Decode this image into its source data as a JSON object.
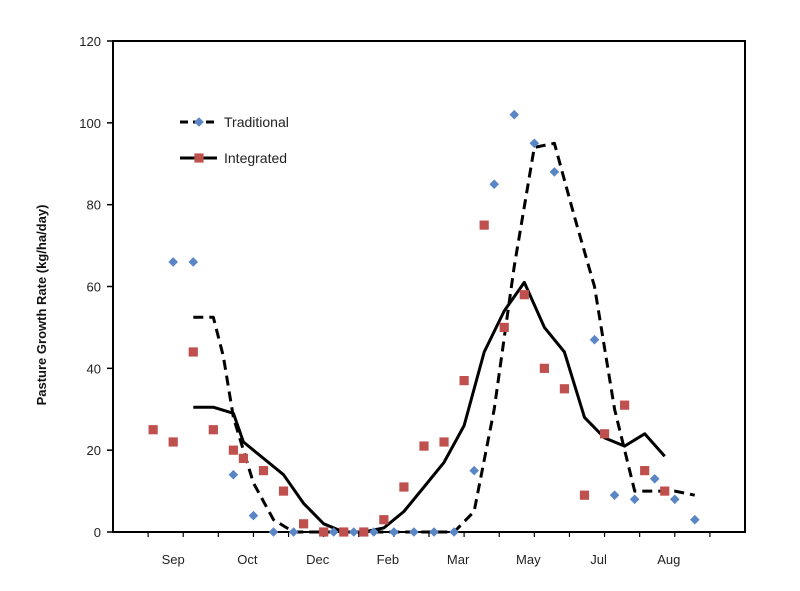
{
  "chart_data": {
    "type": "scatter",
    "ylabel": "Pasture Growth Rate (kg/ha/day)",
    "xlabel": "",
    "ylim": [
      0,
      120
    ],
    "yticks": [
      0,
      20,
      40,
      60,
      80,
      100,
      120
    ],
    "x_tick_labels": [
      {
        "label": "Sep",
        "x": 1.0
      },
      {
        "label": "Oct",
        "x": 4.7
      },
      {
        "label": "Dec",
        "x": 8.2
      },
      {
        "label": "Feb",
        "x": 11.7
      },
      {
        "label": "Mar",
        "x": 15.2
      },
      {
        "label": "May",
        "x": 18.7
      },
      {
        "label": "Jul",
        "x": 22.2
      },
      {
        "label": "Aug",
        "x": 25.7
      }
    ],
    "xlim": [
      -2,
      29.5
    ],
    "grid": false,
    "legend_position": "top-left",
    "series": [
      {
        "name": "Traditional",
        "color": "#5b86c5",
        "marker": "diamond",
        "line_style": "dashed",
        "points": [
          [
            1,
            66
          ],
          [
            2,
            66
          ],
          [
            4,
            14
          ],
          [
            5,
            4
          ],
          [
            6,
            0
          ],
          [
            7,
            0
          ],
          [
            9,
            0
          ],
          [
            10,
            0
          ],
          [
            11,
            0
          ],
          [
            12,
            0
          ],
          [
            13,
            0
          ],
          [
            14,
            0
          ],
          [
            15,
            0
          ],
          [
            16,
            15
          ],
          [
            17,
            85
          ],
          [
            18,
            102
          ],
          [
            19,
            95
          ],
          [
            20,
            88
          ],
          [
            22,
            47
          ],
          [
            23,
            9
          ],
          [
            24,
            8
          ],
          [
            25,
            13
          ],
          [
            26,
            8
          ],
          [
            27,
            3
          ]
        ],
        "line": [
          [
            2,
            52.5
          ],
          [
            3,
            52.5
          ],
          [
            3.5,
            43
          ],
          [
            4,
            28
          ],
          [
            5,
            12
          ],
          [
            6,
            3
          ],
          [
            7,
            0
          ],
          [
            8,
            0
          ],
          [
            9,
            0
          ],
          [
            10,
            0
          ],
          [
            11,
            0
          ],
          [
            12,
            0
          ],
          [
            13,
            0
          ],
          [
            14,
            0
          ],
          [
            15,
            0
          ],
          [
            16,
            5
          ],
          [
            17,
            30
          ],
          [
            18,
            65
          ],
          [
            19,
            94
          ],
          [
            20,
            95
          ],
          [
            21,
            77
          ],
          [
            22,
            60
          ],
          [
            23,
            30
          ],
          [
            24,
            10
          ],
          [
            25,
            10
          ],
          [
            26,
            10
          ],
          [
            27,
            9
          ]
        ]
      },
      {
        "name": "Integrated",
        "color": "#c0504d",
        "marker": "square",
        "line_style": "solid",
        "points": [
          [
            0,
            25
          ],
          [
            1,
            22
          ],
          [
            2,
            44
          ],
          [
            3,
            25
          ],
          [
            4,
            20
          ],
          [
            4.5,
            18
          ],
          [
            5.5,
            15
          ],
          [
            6.5,
            10
          ],
          [
            7.5,
            2
          ],
          [
            8.5,
            0
          ],
          [
            9.5,
            0
          ],
          [
            10.5,
            0
          ],
          [
            11.5,
            3
          ],
          [
            12.5,
            11
          ],
          [
            13.5,
            21
          ],
          [
            14.5,
            22
          ],
          [
            15.5,
            37
          ],
          [
            16.5,
            75
          ],
          [
            17.5,
            50
          ],
          [
            18.5,
            58
          ],
          [
            19.5,
            40
          ],
          [
            20.5,
            35
          ],
          [
            21.5,
            9
          ],
          [
            22.5,
            24
          ],
          [
            23.5,
            31
          ],
          [
            24.5,
            15
          ],
          [
            25.5,
            10
          ]
        ],
        "line": [
          [
            2,
            30.5
          ],
          [
            3,
            30.5
          ],
          [
            4,
            29
          ],
          [
            4.5,
            22
          ],
          [
            5.5,
            18
          ],
          [
            6.5,
            14
          ],
          [
            7.5,
            7
          ],
          [
            8.5,
            2
          ],
          [
            9.5,
            0
          ],
          [
            10.5,
            0
          ],
          [
            11.5,
            1
          ],
          [
            12.5,
            5
          ],
          [
            13.5,
            11
          ],
          [
            14.5,
            17
          ],
          [
            15.5,
            26
          ],
          [
            16.5,
            44
          ],
          [
            17.5,
            54
          ],
          [
            18.5,
            61
          ],
          [
            19.5,
            50
          ],
          [
            20.5,
            44
          ],
          [
            21.5,
            28
          ],
          [
            22.5,
            23
          ],
          [
            23.5,
            21
          ],
          [
            24.5,
            24
          ],
          [
            25.5,
            18.5
          ]
        ]
      }
    ]
  }
}
